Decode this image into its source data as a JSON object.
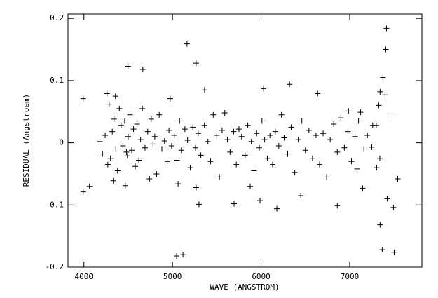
{
  "chart_data": {
    "type": "scatter",
    "xlabel": "WAVE (ANGSTROM)",
    "ylabel": "RESIDUAL (Angstroem)",
    "color": "#000000",
    "xlim": [
      3820,
      7815
    ],
    "ylim": [
      -0.2,
      0.207
    ],
    "xticks": [
      4000,
      5000,
      6000,
      7000
    ],
    "yticks": [
      -0.2,
      -0.1,
      0,
      0.1,
      0.2
    ],
    "x": [
      3992,
      3992,
      4063,
      4261,
      4356,
      4491,
      4285,
      4332,
      4467,
      4498,
      4665,
      4974,
      5164,
      5267,
      5362,
      5047,
      5118,
      5267,
      5299,
      5063,
      5695,
      5877,
      5988,
      6028,
      6178,
      6321,
      6448,
      6638,
      6860,
      6987,
      7343,
      7367,
      7415,
      7407,
      7375,
      7399,
      7343,
      7423,
      7494,
      7502,
      7542,
      7455,
      7304,
      7328,
      7249,
      7146,
      7083,
      7122,
      4180,
      4210,
      4240,
      4270,
      4300,
      4320,
      4340,
      4360,
      4380,
      4400,
      4420,
      4440,
      4460,
      4480,
      4500,
      4520,
      4540,
      4560,
      4580,
      4600,
      4620,
      4640,
      4660,
      4690,
      4720,
      4740,
      4760,
      4780,
      4800,
      4820,
      4850,
      4880,
      4910,
      4940,
      4960,
      4990,
      5020,
      5050,
      5080,
      5100,
      5140,
      5170,
      5200,
      5230,
      5260,
      5290,
      5320,
      5360,
      5400,
      5430,
      5460,
      5500,
      5530,
      5560,
      5590,
      5620,
      5650,
      5690,
      5720,
      5750,
      5780,
      5820,
      5850,
      5890,
      5920,
      5950,
      5980,
      6010,
      6040,
      6070,
      6100,
      6130,
      6160,
      6200,
      6230,
      6260,
      6300,
      6340,
      6380,
      6420,
      6460,
      6500,
      6540,
      6580,
      6620,
      6660,
      6700,
      6740,
      6780,
      6820,
      6860,
      6900,
      6940,
      6980,
      7020,
      7060,
      7100,
      7160,
      7200,
      7260,
      7300,
      7340
    ],
    "values": [
      0.071,
      -0.079,
      -0.07,
      0.079,
      0.075,
      -0.021,
      0.062,
      -0.061,
      -0.069,
      0.123,
      0.118,
      0.071,
      0.159,
      0.128,
      0.085,
      -0.182,
      -0.18,
      -0.072,
      -0.099,
      -0.066,
      -0.098,
      -0.07,
      -0.093,
      0.087,
      -0.106,
      0.094,
      -0.085,
      0.079,
      -0.101,
      0.051,
      -0.132,
      -0.172,
      0.184,
      0.15,
      0.105,
      0.077,
      0.082,
      -0.09,
      -0.104,
      -0.176,
      -0.058,
      0.043,
      -0.04,
      0.06,
      -0.007,
      -0.073,
      -0.042,
      0.049,
      0.002,
      -0.018,
      0.012,
      -0.035,
      -0.025,
      0.018,
      0.038,
      -0.01,
      -0.045,
      0.055,
      0.028,
      -0.005,
      0.035,
      -0.015,
      0.01,
      0.045,
      -0.012,
      0.022,
      -0.038,
      0.03,
      -0.028,
      0.005,
      0.055,
      -0.008,
      0.018,
      -0.058,
      0.038,
      -0.002,
      0.01,
      -0.05,
      0.045,
      -0.01,
      0.003,
      -0.03,
      0.02,
      -0.005,
      0.012,
      -0.028,
      0.035,
      -0.012,
      0.022,
      0.004,
      -0.04,
      0.025,
      -0.008,
      0.015,
      -0.02,
      0.028,
      0.002,
      -0.03,
      0.045,
      0.012,
      -0.055,
      0.02,
      0.048,
      0.005,
      -0.015,
      0.018,
      -0.035,
      0.022,
      0.01,
      -0.02,
      0.028,
      0.002,
      -0.045,
      0.015,
      -0.008,
      0.035,
      0.005,
      -0.025,
      0.012,
      -0.035,
      0.018,
      -0.005,
      0.045,
      0.008,
      -0.018,
      0.025,
      -0.048,
      0.005,
      0.035,
      -0.012,
      0.02,
      -0.025,
      0.012,
      -0.035,
      0.015,
      -0.055,
      0.005,
      0.03,
      -0.015,
      0.04,
      -0.008,
      0.018,
      -0.03,
      0.01,
      0.035,
      -0.01,
      0.012,
      0.028,
      0.028,
      -0.025
    ]
  }
}
